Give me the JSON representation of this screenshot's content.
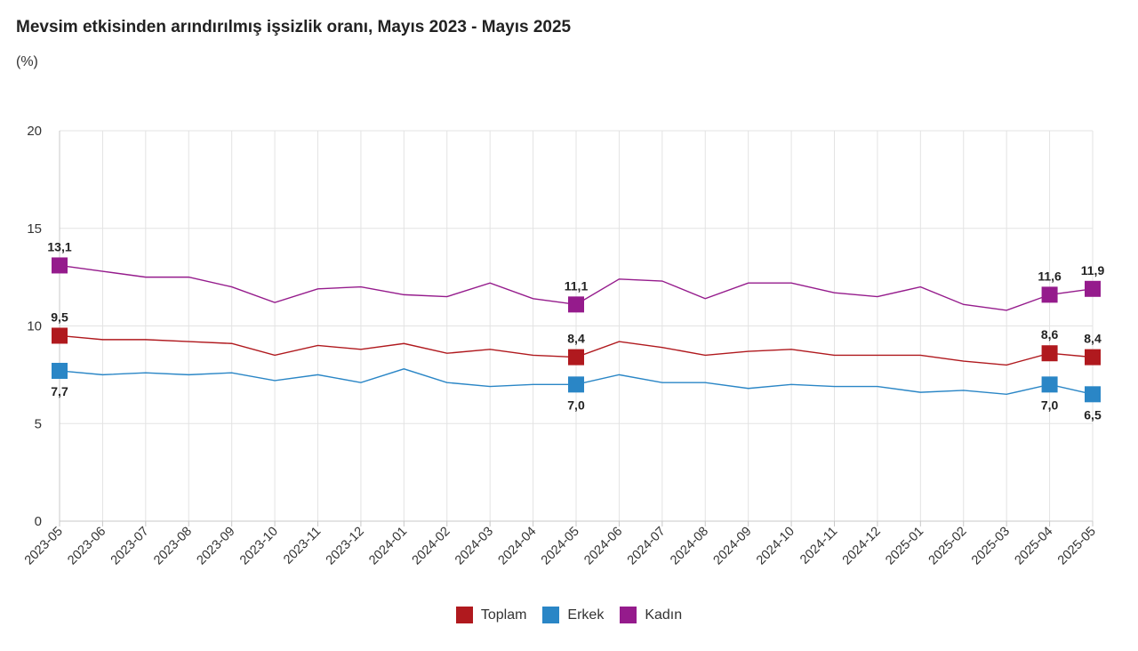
{
  "title": "Mevsim etkisinden arındırılmış işsizlik oranı, Mayıs 2023 - Mayıs 2025",
  "unit_label": "(%)",
  "chart_data": {
    "type": "line",
    "title": "Mevsim etkisinden arındırılmış işsizlik oranı, Mayıs 2023 - Mayıs 2025",
    "ylabel": "(%)",
    "xlabel": "",
    "ylim": [
      0,
      20
    ],
    "yticks": [
      0,
      5,
      10,
      15,
      20
    ],
    "grid": true,
    "legend_position": "bottom",
    "categories": [
      "2023-05",
      "2023-06",
      "2023-07",
      "2023-08",
      "2023-09",
      "2023-10",
      "2023-11",
      "2023-12",
      "2024-01",
      "2024-02",
      "2024-03",
      "2024-04",
      "2024-05",
      "2024-06",
      "2024-07",
      "2024-08",
      "2024-09",
      "2024-10",
      "2024-11",
      "2024-12",
      "2025-01",
      "2025-02",
      "2025-03",
      "2025-04",
      "2025-05"
    ],
    "series": [
      {
        "name": "Toplam",
        "color": "#b0191e",
        "values": [
          9.5,
          9.3,
          9.3,
          9.2,
          9.1,
          8.5,
          9.0,
          8.8,
          9.1,
          8.6,
          8.8,
          8.5,
          8.4,
          9.2,
          8.9,
          8.5,
          8.7,
          8.8,
          8.5,
          8.5,
          8.5,
          8.2,
          8.0,
          8.6,
          8.4
        ],
        "labels": [
          {
            "index": 0,
            "text": "9,5"
          },
          {
            "index": 12,
            "text": "8,4"
          },
          {
            "index": 23,
            "text": "8,6"
          },
          {
            "index": 24,
            "text": "8,4"
          }
        ]
      },
      {
        "name": "Erkek",
        "color": "#2a86c6",
        "values": [
          7.7,
          7.5,
          7.6,
          7.5,
          7.6,
          7.2,
          7.5,
          7.1,
          7.8,
          7.1,
          6.9,
          7.0,
          7.0,
          7.5,
          7.1,
          7.1,
          6.8,
          7.0,
          6.9,
          6.9,
          6.6,
          6.7,
          6.5,
          7.0,
          6.5
        ],
        "labels": [
          {
            "index": 0,
            "text": "7,7"
          },
          {
            "index": 12,
            "text": "7,0"
          },
          {
            "index": 23,
            "text": "7,0"
          },
          {
            "index": 24,
            "text": "6,5"
          }
        ]
      },
      {
        "name": "Kadın",
        "color": "#951b8c",
        "values": [
          13.1,
          12.8,
          12.5,
          12.5,
          12.0,
          11.2,
          11.9,
          12.0,
          11.6,
          11.5,
          12.2,
          11.4,
          11.1,
          12.4,
          12.3,
          11.4,
          12.2,
          12.2,
          11.7,
          11.5,
          12.0,
          11.1,
          10.8,
          11.6,
          11.9
        ],
        "labels": [
          {
            "index": 0,
            "text": "13,1"
          },
          {
            "index": 12,
            "text": "11,1"
          },
          {
            "index": 23,
            "text": "11,6"
          },
          {
            "index": 24,
            "text": "11,9"
          }
        ]
      }
    ]
  }
}
